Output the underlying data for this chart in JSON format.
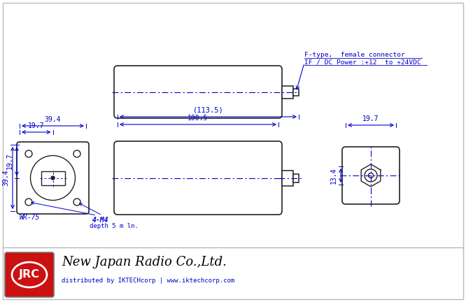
{
  "bg_color": "#ffffff",
  "border_color": "#aaaaaa",
  "line_color": "#222222",
  "dim_color": "#0000cc",
  "jrc_red": "#cc1111",
  "annotation_label1": "F-type,  female connector",
  "annotation_label2": "IF / DC Power :+12  to +24VDC",
  "dim_113_5": "(113.5)",
  "dim_100_5": "100.5",
  "dim_39_4_top": "39.4",
  "dim_19_7_top": "19.7",
  "dim_39_4_side": "39.4",
  "dim_19_7_side": "19.7",
  "dim_19_7_right": "19.7",
  "dim_13_4": "13.4",
  "label_wr75": "WR-75",
  "label_4m4": "4-M4",
  "label_depth": "depth 5 m ln.",
  "company_name": "New Japan Radio Co.,Ltd.",
  "distributor": "distributed by IKTECHcorp | www.iktechcorp.com"
}
